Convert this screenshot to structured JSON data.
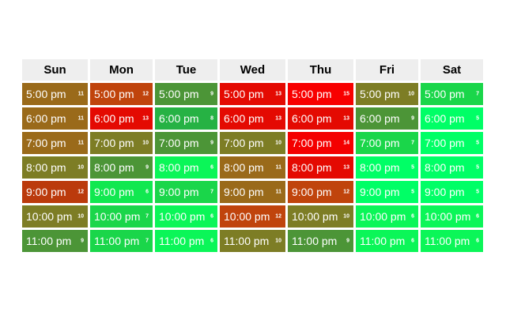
{
  "days": [
    {
      "label": "Sun",
      "cells": [
        {
          "time": "5:00 pm",
          "count": "11",
          "color": "#9a6a1a"
        },
        {
          "time": "6:00 pm",
          "count": "11",
          "color": "#9a6a1a"
        },
        {
          "time": "7:00 pm",
          "count": "11",
          "color": "#9a6a1a"
        },
        {
          "time": "8:00 pm",
          "count": "10",
          "color": "#7d7d25"
        },
        {
          "time": "9:00 pm",
          "count": "12",
          "color": "#bb3a0c"
        },
        {
          "time": "10:00 pm",
          "count": "10",
          "color": "#7d7d25"
        },
        {
          "time": "11:00 pm",
          "count": "9",
          "color": "#4c9537"
        }
      ]
    },
    {
      "label": "Mon",
      "cells": [
        {
          "time": "5:00 pm",
          "count": "12",
          "color": "#c0440c"
        },
        {
          "time": "6:00 pm",
          "count": "13",
          "color": "#e40a02"
        },
        {
          "time": "7:00 pm",
          "count": "10",
          "color": "#7d7d25"
        },
        {
          "time": "8:00 pm",
          "count": "9",
          "color": "#4c9537"
        },
        {
          "time": "9:00 pm",
          "count": "6",
          "color": "#11e850"
        },
        {
          "time": "10:00 pm",
          "count": "7",
          "color": "#1ad64a"
        },
        {
          "time": "11:00 pm",
          "count": "7",
          "color": "#1ad64a"
        }
      ]
    },
    {
      "label": "Tue",
      "cells": [
        {
          "time": "5:00 pm",
          "count": "9",
          "color": "#4c9537"
        },
        {
          "time": "6:00 pm",
          "count": "8",
          "color": "#26b244"
        },
        {
          "time": "7:00 pm",
          "count": "9",
          "color": "#4c9537"
        },
        {
          "time": "8:00 pm",
          "count": "6",
          "color": "#0bf658"
        },
        {
          "time": "9:00 pm",
          "count": "7",
          "color": "#1ad64a"
        },
        {
          "time": "10:00 pm",
          "count": "6",
          "color": "#0bf658"
        },
        {
          "time": "11:00 pm",
          "count": "6",
          "color": "#0bf658"
        }
      ]
    },
    {
      "label": "Wed",
      "cells": [
        {
          "time": "5:00 pm",
          "count": "13",
          "color": "#e40a02"
        },
        {
          "time": "6:00 pm",
          "count": "13",
          "color": "#e40a02"
        },
        {
          "time": "7:00 pm",
          "count": "10",
          "color": "#7d7d25"
        },
        {
          "time": "8:00 pm",
          "count": "11",
          "color": "#9a6a1a"
        },
        {
          "time": "9:00 pm",
          "count": "11",
          "color": "#9a6a1a"
        },
        {
          "time": "10:00 pm",
          "count": "12",
          "color": "#c0440c"
        },
        {
          "time": "11:00 pm",
          "count": "10",
          "color": "#7d7d25"
        }
      ]
    },
    {
      "label": "Thu",
      "cells": [
        {
          "time": "5:00 pm",
          "count": "15",
          "color": "#f80000"
        },
        {
          "time": "6:00 pm",
          "count": "13",
          "color": "#e40a02"
        },
        {
          "time": "7:00 pm",
          "count": "14",
          "color": "#f40000"
        },
        {
          "time": "8:00 pm",
          "count": "13",
          "color": "#e40a02"
        },
        {
          "time": "9:00 pm",
          "count": "12",
          "color": "#c0440c"
        },
        {
          "time": "10:00 pm",
          "count": "10",
          "color": "#7d7d25"
        },
        {
          "time": "11:00 pm",
          "count": "9",
          "color": "#4c9537"
        }
      ]
    },
    {
      "label": "Fri",
      "cells": [
        {
          "time": "5:00 pm",
          "count": "10",
          "color": "#7d7d25"
        },
        {
          "time": "6:00 pm",
          "count": "9",
          "color": "#4c9537"
        },
        {
          "time": "7:00 pm",
          "count": "7",
          "color": "#1ad64a"
        },
        {
          "time": "8:00 pm",
          "count": "5",
          "color": "#00ff66"
        },
        {
          "time": "9:00 pm",
          "count": "5",
          "color": "#00ff66"
        },
        {
          "time": "10:00 pm",
          "count": "6",
          "color": "#0bf658"
        },
        {
          "time": "11:00 pm",
          "count": "6",
          "color": "#0bf658"
        }
      ]
    },
    {
      "label": "Sat",
      "cells": [
        {
          "time": "5:00 pm",
          "count": "7",
          "color": "#1ad64a"
        },
        {
          "time": "6:00 pm",
          "count": "5",
          "color": "#00ff66"
        },
        {
          "time": "7:00 pm",
          "count": "5",
          "color": "#00ff66"
        },
        {
          "time": "8:00 pm",
          "count": "5",
          "color": "#00ff66"
        },
        {
          "time": "9:00 pm",
          "count": "5",
          "color": "#00ff66"
        },
        {
          "time": "10:00 pm",
          "count": "6",
          "color": "#0bf658"
        },
        {
          "time": "11:00 pm",
          "count": "6",
          "color": "#0bf658"
        }
      ]
    }
  ]
}
